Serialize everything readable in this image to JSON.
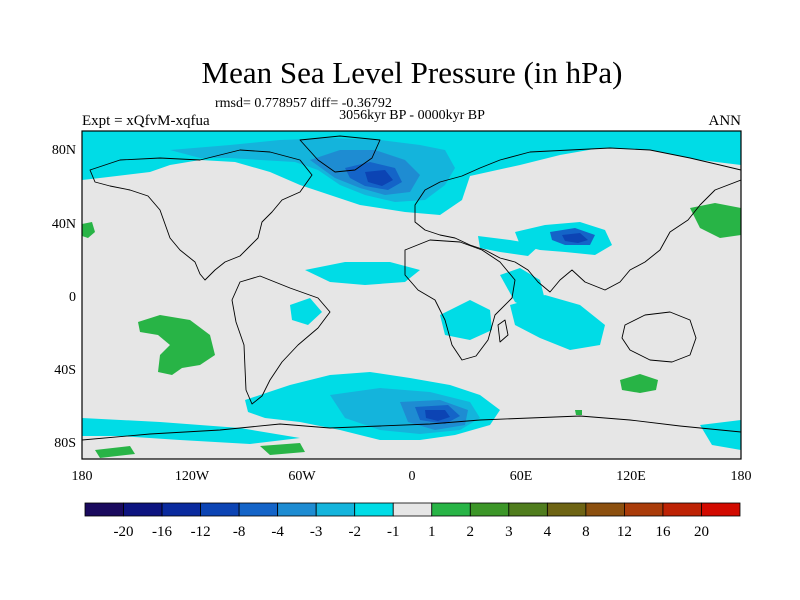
{
  "title": "Mean Sea Level Pressure (in hPa)",
  "stats": "rmsd= 0.778957 diff= -0.36792",
  "period": "3056kyr BP - 0000kyr BP",
  "left_label": "Expt = xQfvM-xqfua",
  "right_label": "ANN",
  "lat_ticks": [
    "80N",
    "40N",
    "0",
    "40S",
    "80S"
  ],
  "lon_ticks": [
    "180",
    "120W",
    "60W",
    "0",
    "60E",
    "120E",
    "180"
  ],
  "colorbar": {
    "labels": [
      "-20",
      "-16",
      "-12",
      "-8",
      "-4",
      "-3",
      "-2",
      "-1",
      "1",
      "2",
      "3",
      "4",
      "8",
      "12",
      "16",
      "20"
    ],
    "colors": [
      "#1a0a5e",
      "#0d1480",
      "#0a2a9e",
      "#0c44b4",
      "#1464c8",
      "#1e8cd2",
      "#14b4dc",
      "#00dce6",
      "#e6e6e6",
      "#28b446",
      "#3c9628",
      "#507d1e",
      "#6e6414",
      "#8c500f",
      "#aa3c0a",
      "#be2305",
      "#d20a00"
    ]
  },
  "palette": {
    "land_bg": "#e6e6e6",
    "cyan": "#00dce6",
    "sky": "#14b4dc",
    "blue": "#1e8cd2",
    "deep": "#1464c8",
    "darkest": "#0c44b4",
    "green": "#28b446"
  }
}
